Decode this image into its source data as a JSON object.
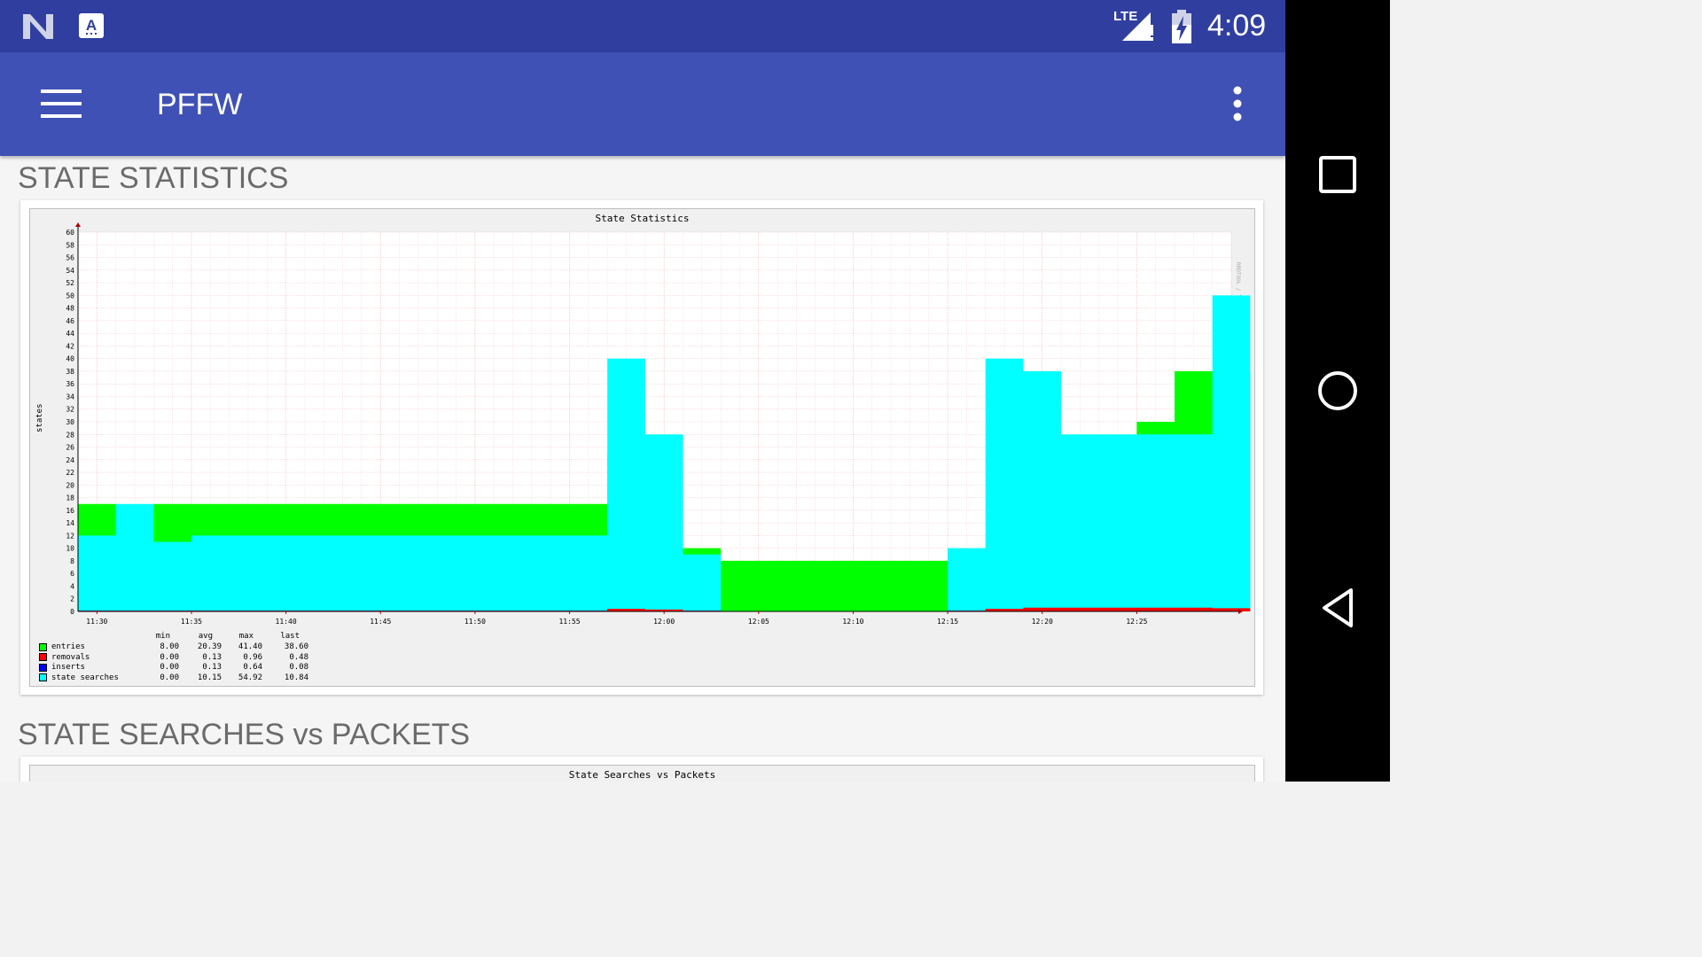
{
  "status_bar": {
    "time": "4:09",
    "network": "LTE",
    "icons": [
      "n-notification-icon",
      "a-keyboard-icon",
      "signal-icon",
      "battery-charging-icon"
    ]
  },
  "app_bar": {
    "title": "PFFW",
    "menu_icon": "hamburger-icon",
    "overflow_icon": "more-vert-icon"
  },
  "nav_bar": {
    "icons": [
      "recents-square-icon",
      "home-circle-icon",
      "back-triangle-icon"
    ]
  },
  "sections": [
    {
      "title": "STATE STATISTICS"
    },
    {
      "title": "STATE SEARCHES vs PACKETS"
    }
  ],
  "graph1": {
    "title": "State Statistics",
    "vertical_label": "states",
    "watermark": "RRDTOOL / TOBI OETIKER",
    "legend_headers": [
      "min",
      "avg",
      "max",
      "last"
    ],
    "legend": [
      {
        "name": "entries",
        "color": "#00ff00",
        "min": "8.00",
        "avg": "20.39",
        "max": "41.40",
        "last": "38.60"
      },
      {
        "name": "removals",
        "color": "#ff0000",
        "min": "0.00",
        "avg": "0.13",
        "max": "0.96",
        "last": "0.48"
      },
      {
        "name": "inserts",
        "color": "#0000ff",
        "min": "0.00",
        "avg": "0.13",
        "max": "0.64",
        "last": "0.08"
      },
      {
        "name": "state searches",
        "color": "#00ffff",
        "min": "0.00",
        "avg": "10.15",
        "max": "54.92",
        "last": "10.84"
      }
    ]
  },
  "graph2": {
    "title": "State Searches vs Packets"
  },
  "chart_data": {
    "type": "area",
    "title": "State Statistics",
    "xlabel": "",
    "ylabel": "states",
    "ylim": [
      0,
      60
    ],
    "yticks": [
      0,
      2,
      4,
      6,
      8,
      10,
      12,
      14,
      16,
      18,
      20,
      22,
      24,
      26,
      28,
      30,
      32,
      34,
      36,
      38,
      40,
      42,
      44,
      46,
      48,
      50,
      52,
      54,
      56,
      58,
      60
    ],
    "x_ticks": [
      "11:30",
      "11:35",
      "11:40",
      "11:45",
      "11:50",
      "11:55",
      "12:00",
      "12:05",
      "12:10",
      "12:15",
      "12:20",
      "12:25"
    ],
    "x_minutes": [
      1,
      3,
      5,
      7,
      9,
      11,
      13,
      15,
      17,
      19,
      21,
      23,
      25,
      27,
      29,
      31,
      33,
      35,
      37,
      39,
      41,
      43,
      45,
      47,
      49,
      51,
      53,
      55,
      57,
      59,
      61
    ],
    "grid": true,
    "series": [
      {
        "name": "entries",
        "color": "#00ff00",
        "values": [
          17,
          16,
          17,
          17,
          17,
          17,
          17,
          17,
          17,
          17,
          17,
          17,
          17,
          17,
          25,
          22,
          10,
          8,
          8,
          8,
          8,
          8,
          8,
          8,
          8,
          12,
          10,
          10,
          30,
          38,
          38
        ]
      },
      {
        "name": "state searches",
        "color": "#00ffff",
        "values": [
          12,
          17,
          11,
          12,
          12,
          12,
          12,
          12,
          12,
          12,
          12,
          12,
          12,
          12,
          40,
          28,
          9,
          0,
          0,
          0,
          0,
          0,
          0,
          10,
          40,
          38,
          28,
          28,
          28,
          28,
          50
        ]
      },
      {
        "name": "inserts",
        "color": "#0000ff",
        "values": [
          0.1,
          0.1,
          0.1,
          0.1,
          0.1,
          0.1,
          0.1,
          0.1,
          0.1,
          0.1,
          0.1,
          0.1,
          0.1,
          0.1,
          0.3,
          0.2,
          0.1,
          0,
          0,
          0,
          0,
          0,
          0,
          0.1,
          0.3,
          0.5,
          0.5,
          0.5,
          0.5,
          0.5,
          0.1
        ]
      },
      {
        "name": "removals",
        "color": "#ff0000",
        "values": [
          0.1,
          0.1,
          0.1,
          0.1,
          0.1,
          0.1,
          0.1,
          0.1,
          0.1,
          0.1,
          0.1,
          0.1,
          0.1,
          0.1,
          0.4,
          0.3,
          0.1,
          0,
          0,
          0,
          0,
          0,
          0,
          0.1,
          0.4,
          0.6,
          0.6,
          0.6,
          0.6,
          0.6,
          0.5
        ]
      }
    ]
  }
}
